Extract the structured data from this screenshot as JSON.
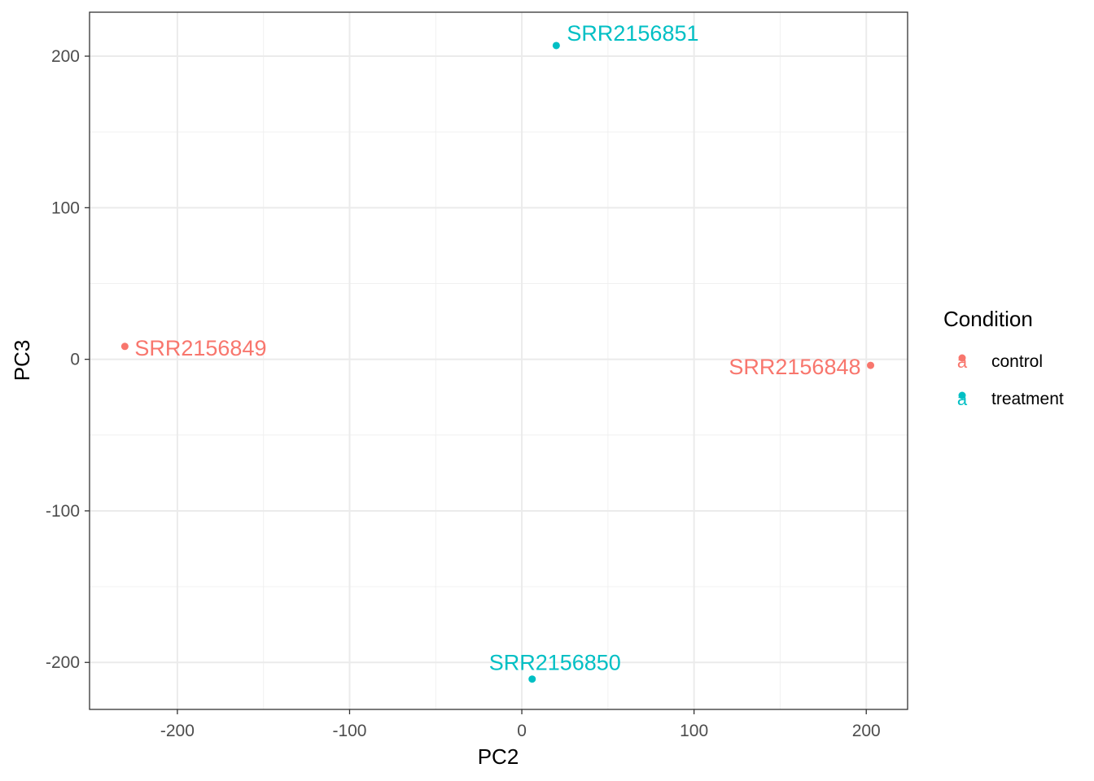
{
  "chart_data": {
    "type": "scatter",
    "xlabel": "PC2",
    "ylabel": "PC3",
    "xlim": [
      -251,
      224
    ],
    "ylim": [
      -231,
      229
    ],
    "xticks": [
      -200,
      -100,
      0,
      100,
      200
    ],
    "yticks": [
      -200,
      -100,
      0,
      100,
      200
    ],
    "grid": true,
    "legend": {
      "title": "Condition",
      "position": "right",
      "key_glyph": "a",
      "entries": [
        {
          "label": "control",
          "color": "#F8766D"
        },
        {
          "label": "treatment",
          "color": "#00BFC4"
        }
      ]
    },
    "points": [
      {
        "label": "SRR2156848",
        "x": 202.5,
        "y": -4,
        "condition": "control"
      },
      {
        "label": "SRR2156849",
        "x": -230.5,
        "y": 8.5,
        "condition": "control"
      },
      {
        "label": "SRR2156850",
        "x": 6,
        "y": -211,
        "condition": "treatment"
      },
      {
        "label": "SRR2156851",
        "x": 20,
        "y": 207,
        "condition": "treatment"
      }
    ]
  }
}
